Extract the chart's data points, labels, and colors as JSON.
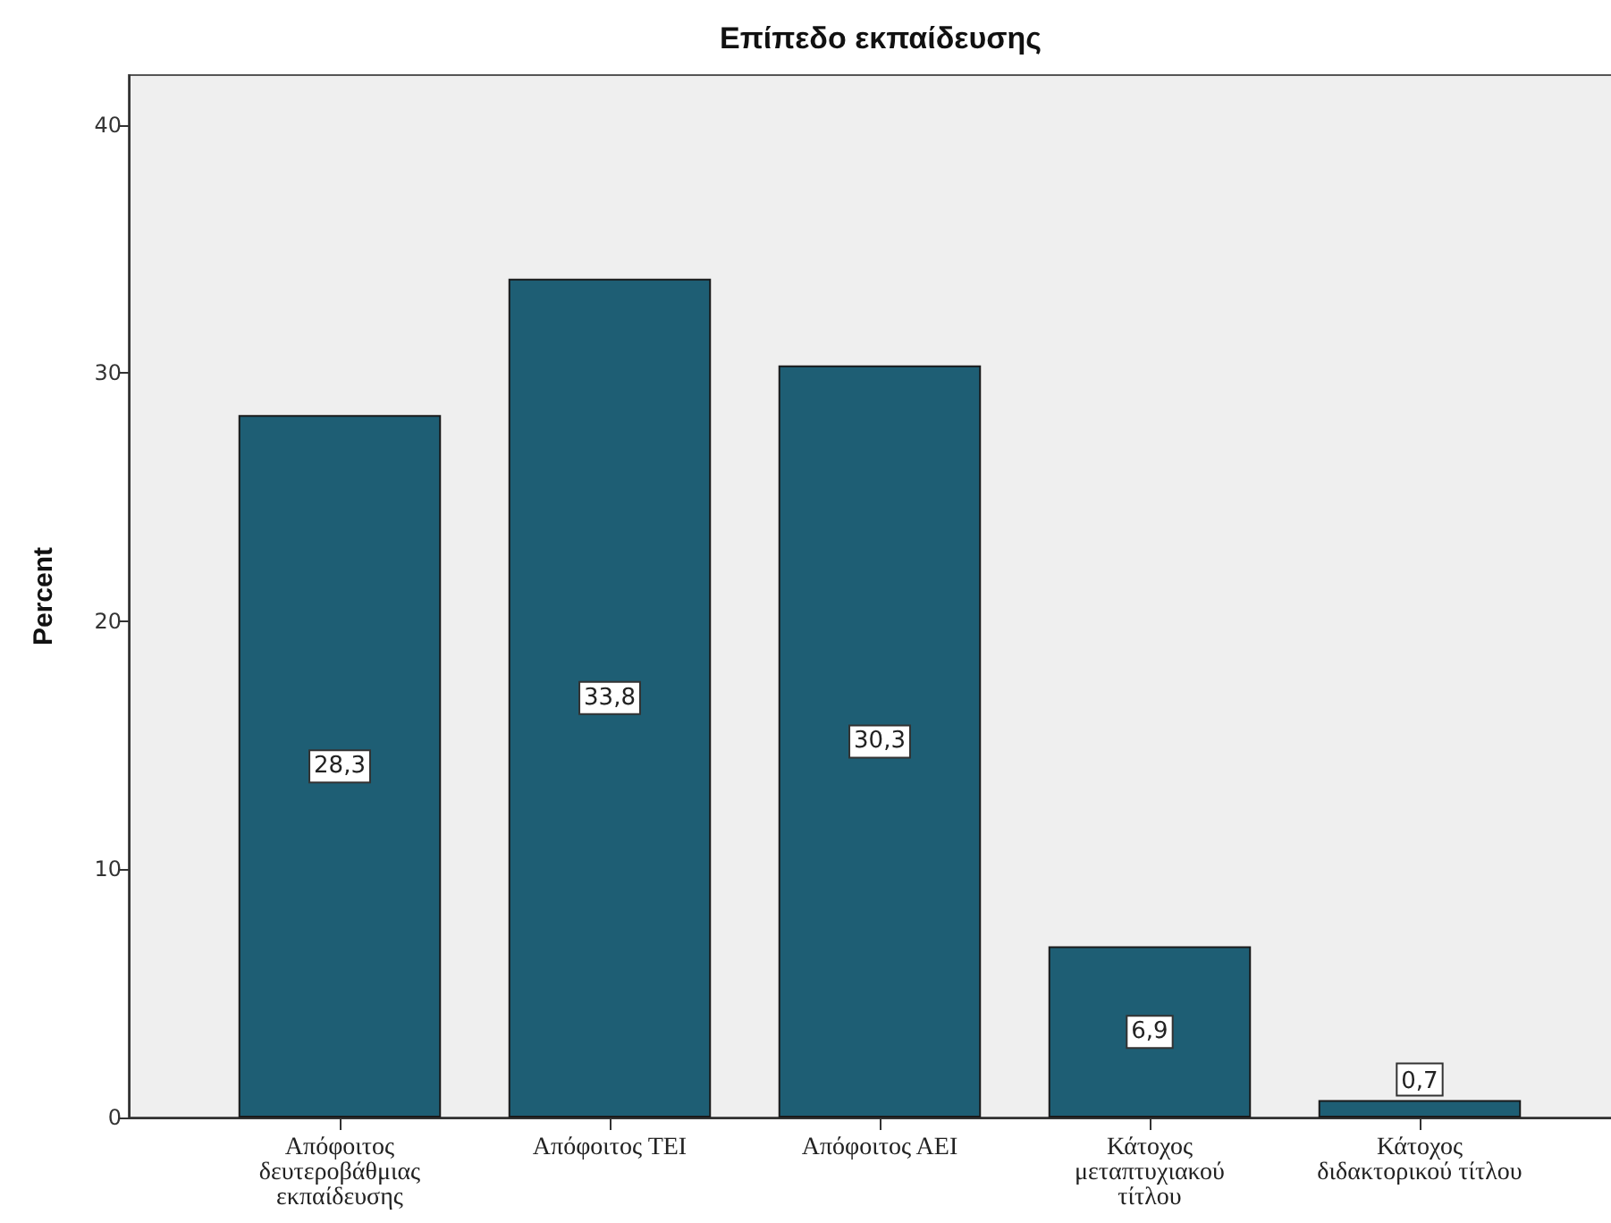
{
  "chart_data": {
    "type": "bar",
    "title": "Επίπεδο εκπαίδευσης",
    "ylabel": "Percent",
    "categories": [
      "Απόφοιτος δευτεροβάθμιας εκπαίδευσης",
      "Απόφοιτος ΤΕΙ",
      "Απόφοιτος ΑΕΙ",
      "Κάτοχος μεταπτυχιακού τίτλου",
      "Κάτοχος διδακτορικού τίτλου"
    ],
    "values": [
      28.3,
      33.8,
      30.3,
      6.9,
      0.7
    ],
    "value_labels": [
      "28,3",
      "33,8",
      "30,3",
      "6,9",
      "0,7"
    ],
    "color": "#1e5e74",
    "ylim": [
      0,
      42
    ],
    "yticks": [
      0,
      10,
      20,
      30,
      40
    ]
  }
}
